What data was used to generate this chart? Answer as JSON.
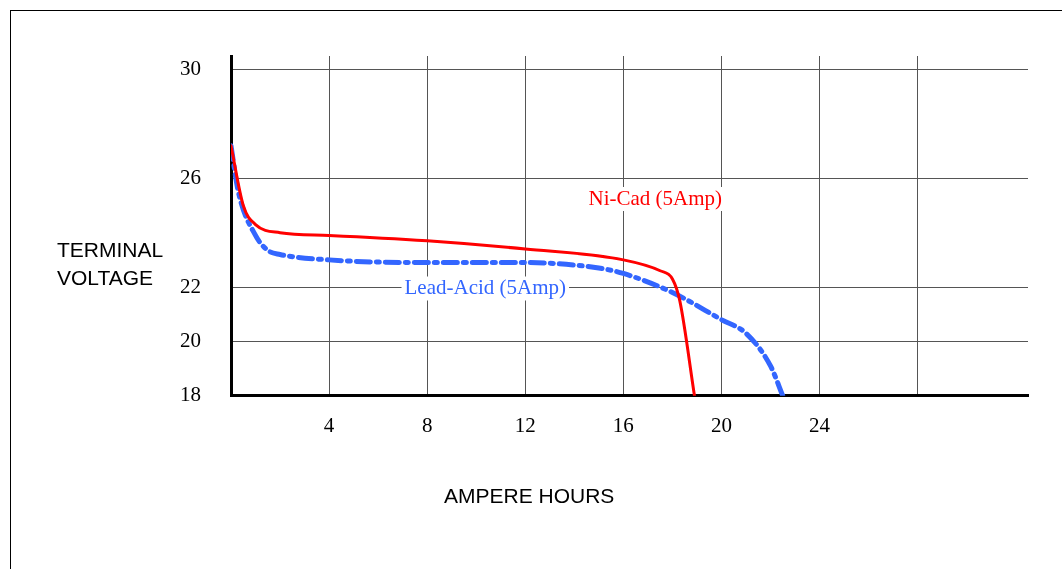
{
  "chart_data": {
    "type": "line",
    "xlabel": "AMPERE HOURS",
    "ylabel": "TERMINAL\nVOLTAGE",
    "xlim": [
      0,
      32.5
    ],
    "ylim": [
      18,
      30.5
    ],
    "xticks": [
      4,
      8,
      12,
      16,
      20,
      24,
      {
        "value": 28,
        "label": null
      }
    ],
    "yticks": [
      18,
      20,
      22,
      26,
      30
    ],
    "grid": true,
    "legend": false,
    "marker": "none",
    "series": [
      {
        "name": "Ni-Cad (5Amp)",
        "color": "#ff0000",
        "line_style": "solid",
        "x": [
          0,
          0.5,
          1,
          2,
          4,
          8,
          12,
          16,
          17.5,
          18,
          18.3,
          18.9
        ],
        "values": [
          27.2,
          25,
          24.3,
          24,
          23.9,
          23.7,
          23.4,
          23,
          22.6,
          22.3,
          21.5,
          18
        ]
      },
      {
        "name": "Lead-Acid (5Amp)",
        "color": "#3366ff",
        "line_style": "dashed",
        "x": [
          0,
          0.3,
          1,
          1.5,
          2,
          4,
          8,
          12,
          15,
          16,
          18,
          20,
          21,
          22,
          22.5
        ],
        "values": [
          27.2,
          25.5,
          23.9,
          23.35,
          23.2,
          23,
          22.9,
          22.9,
          22.7,
          22.5,
          21.8,
          20.8,
          20.3,
          19.1,
          18
        ]
      }
    ]
  }
}
